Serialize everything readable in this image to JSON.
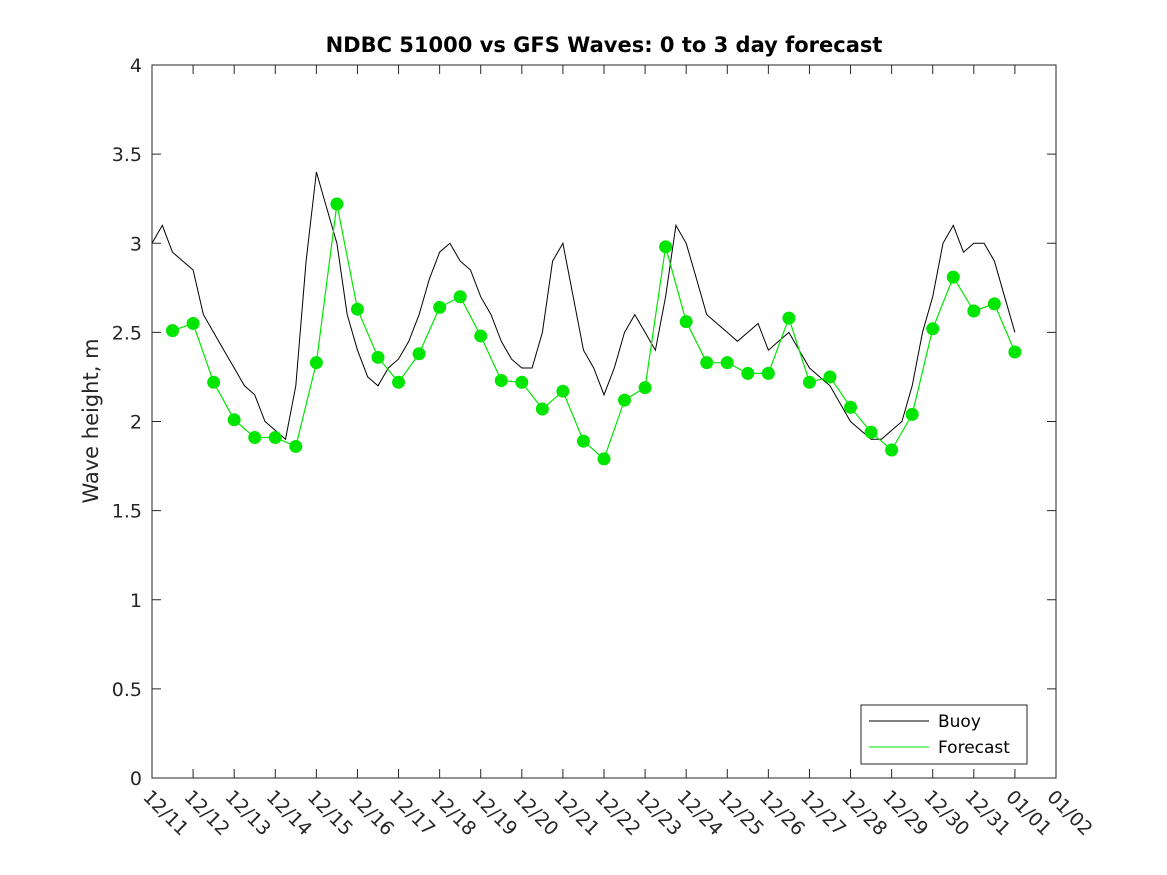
{
  "chart_data": {
    "type": "line",
    "title": "NDBC 51000 vs GFS Waves: 0 to 3 day forecast",
    "xlabel": "",
    "ylabel": "Wave height, m",
    "ylim": [
      0,
      4
    ],
    "xlim": [
      0,
      22
    ],
    "yticks": [
      0,
      0.5,
      1,
      1.5,
      2,
      2.5,
      3,
      3.5,
      4
    ],
    "ytick_labels": [
      "0",
      "0.5",
      "1",
      "1.5",
      "2",
      "2.5",
      "3",
      "3.5",
      "4"
    ],
    "xtick_labels": [
      "12/11",
      "12/12",
      "12/13",
      "12/14",
      "12/15",
      "12/16",
      "12/17",
      "12/18",
      "12/19",
      "12/20",
      "12/21",
      "12/22",
      "12/23",
      "12/24",
      "12/25",
      "12/26",
      "12/27",
      "12/28",
      "12/29",
      "12/30",
      "12/31",
      "01/01",
      "01/02"
    ],
    "grid": false,
    "legend_position": "bottom-right",
    "colors": {
      "buoy": "#000000",
      "forecast": "#00e600"
    },
    "series": [
      {
        "name": "Buoy",
        "style": "line",
        "x": [
          0,
          0.25,
          0.5,
          0.75,
          1,
          1.25,
          1.5,
          1.75,
          2,
          2.25,
          2.5,
          2.75,
          3,
          3.25,
          3.5,
          3.75,
          4,
          4.25,
          4.5,
          4.75,
          5,
          5.25,
          5.5,
          5.75,
          6,
          6.25,
          6.5,
          6.75,
          7,
          7.25,
          7.5,
          7.75,
          8,
          8.25,
          8.5,
          8.75,
          9,
          9.25,
          9.5,
          9.75,
          10,
          10.25,
          10.5,
          10.75,
          11,
          11.25,
          11.5,
          11.75,
          12,
          12.25,
          12.5,
          12.75,
          13,
          13.25,
          13.5,
          13.75,
          14,
          14.25,
          14.5,
          14.75,
          15,
          15.25,
          15.5,
          15.75,
          16,
          16.25,
          16.5,
          16.75,
          17,
          17.25,
          17.5,
          17.75,
          18,
          18.25,
          18.5,
          18.75,
          19,
          19.25,
          19.5,
          19.75,
          20,
          20.25,
          20.5,
          20.75,
          21
        ],
        "values": [
          3.0,
          3.1,
          2.95,
          2.9,
          2.85,
          2.6,
          2.5,
          2.4,
          2.3,
          2.2,
          2.15,
          2.0,
          1.95,
          1.9,
          2.2,
          2.9,
          3.4,
          3.2,
          3.0,
          2.6,
          2.4,
          2.25,
          2.2,
          2.3,
          2.35,
          2.45,
          2.6,
          2.8,
          2.95,
          3.0,
          2.9,
          2.85,
          2.7,
          2.6,
          2.45,
          2.35,
          2.3,
          2.3,
          2.5,
          2.9,
          3.0,
          2.7,
          2.4,
          2.3,
          2.15,
          2.3,
          2.5,
          2.6,
          2.5,
          2.4,
          2.7,
          3.1,
          3.0,
          2.8,
          2.6,
          2.55,
          2.5,
          2.45,
          2.5,
          2.55,
          2.4,
          2.45,
          2.5,
          2.4,
          2.3,
          2.25,
          2.2,
          2.1,
          2.0,
          1.95,
          1.9,
          1.9,
          1.95,
          2.0,
          2.2,
          2.5,
          2.7,
          3.0,
          3.1,
          2.95,
          3.0,
          3.0,
          2.9,
          2.7,
          2.5
        ]
      },
      {
        "name": "Forecast",
        "style": "line-markers",
        "x": [
          0.5,
          1,
          1.5,
          2,
          2.5,
          3,
          3.5,
          4,
          4.5,
          5,
          5.5,
          6,
          6.5,
          7,
          7.5,
          8,
          8.5,
          9,
          9.5,
          10,
          10.5,
          11,
          11.5,
          12,
          12.5,
          13,
          13.5,
          14,
          14.5,
          15,
          15.5,
          16,
          16.5,
          17,
          17.5,
          18,
          18.5,
          19,
          19.5,
          20,
          20.5,
          21
        ],
        "values": [
          2.51,
          2.55,
          2.22,
          2.01,
          1.91,
          1.91,
          1.86,
          2.33,
          3.22,
          2.63,
          2.36,
          2.22,
          2.38,
          2.64,
          2.7,
          2.48,
          2.23,
          2.22,
          2.07,
          2.17,
          1.89,
          1.79,
          2.12,
          2.19,
          2.98,
          2.56,
          2.33,
          2.33,
          2.27,
          2.27,
          2.58,
          2.22,
          2.25,
          2.08,
          1.94,
          1.84,
          2.04,
          2.52,
          2.81,
          2.62,
          2.66,
          2.39
        ]
      }
    ]
  }
}
